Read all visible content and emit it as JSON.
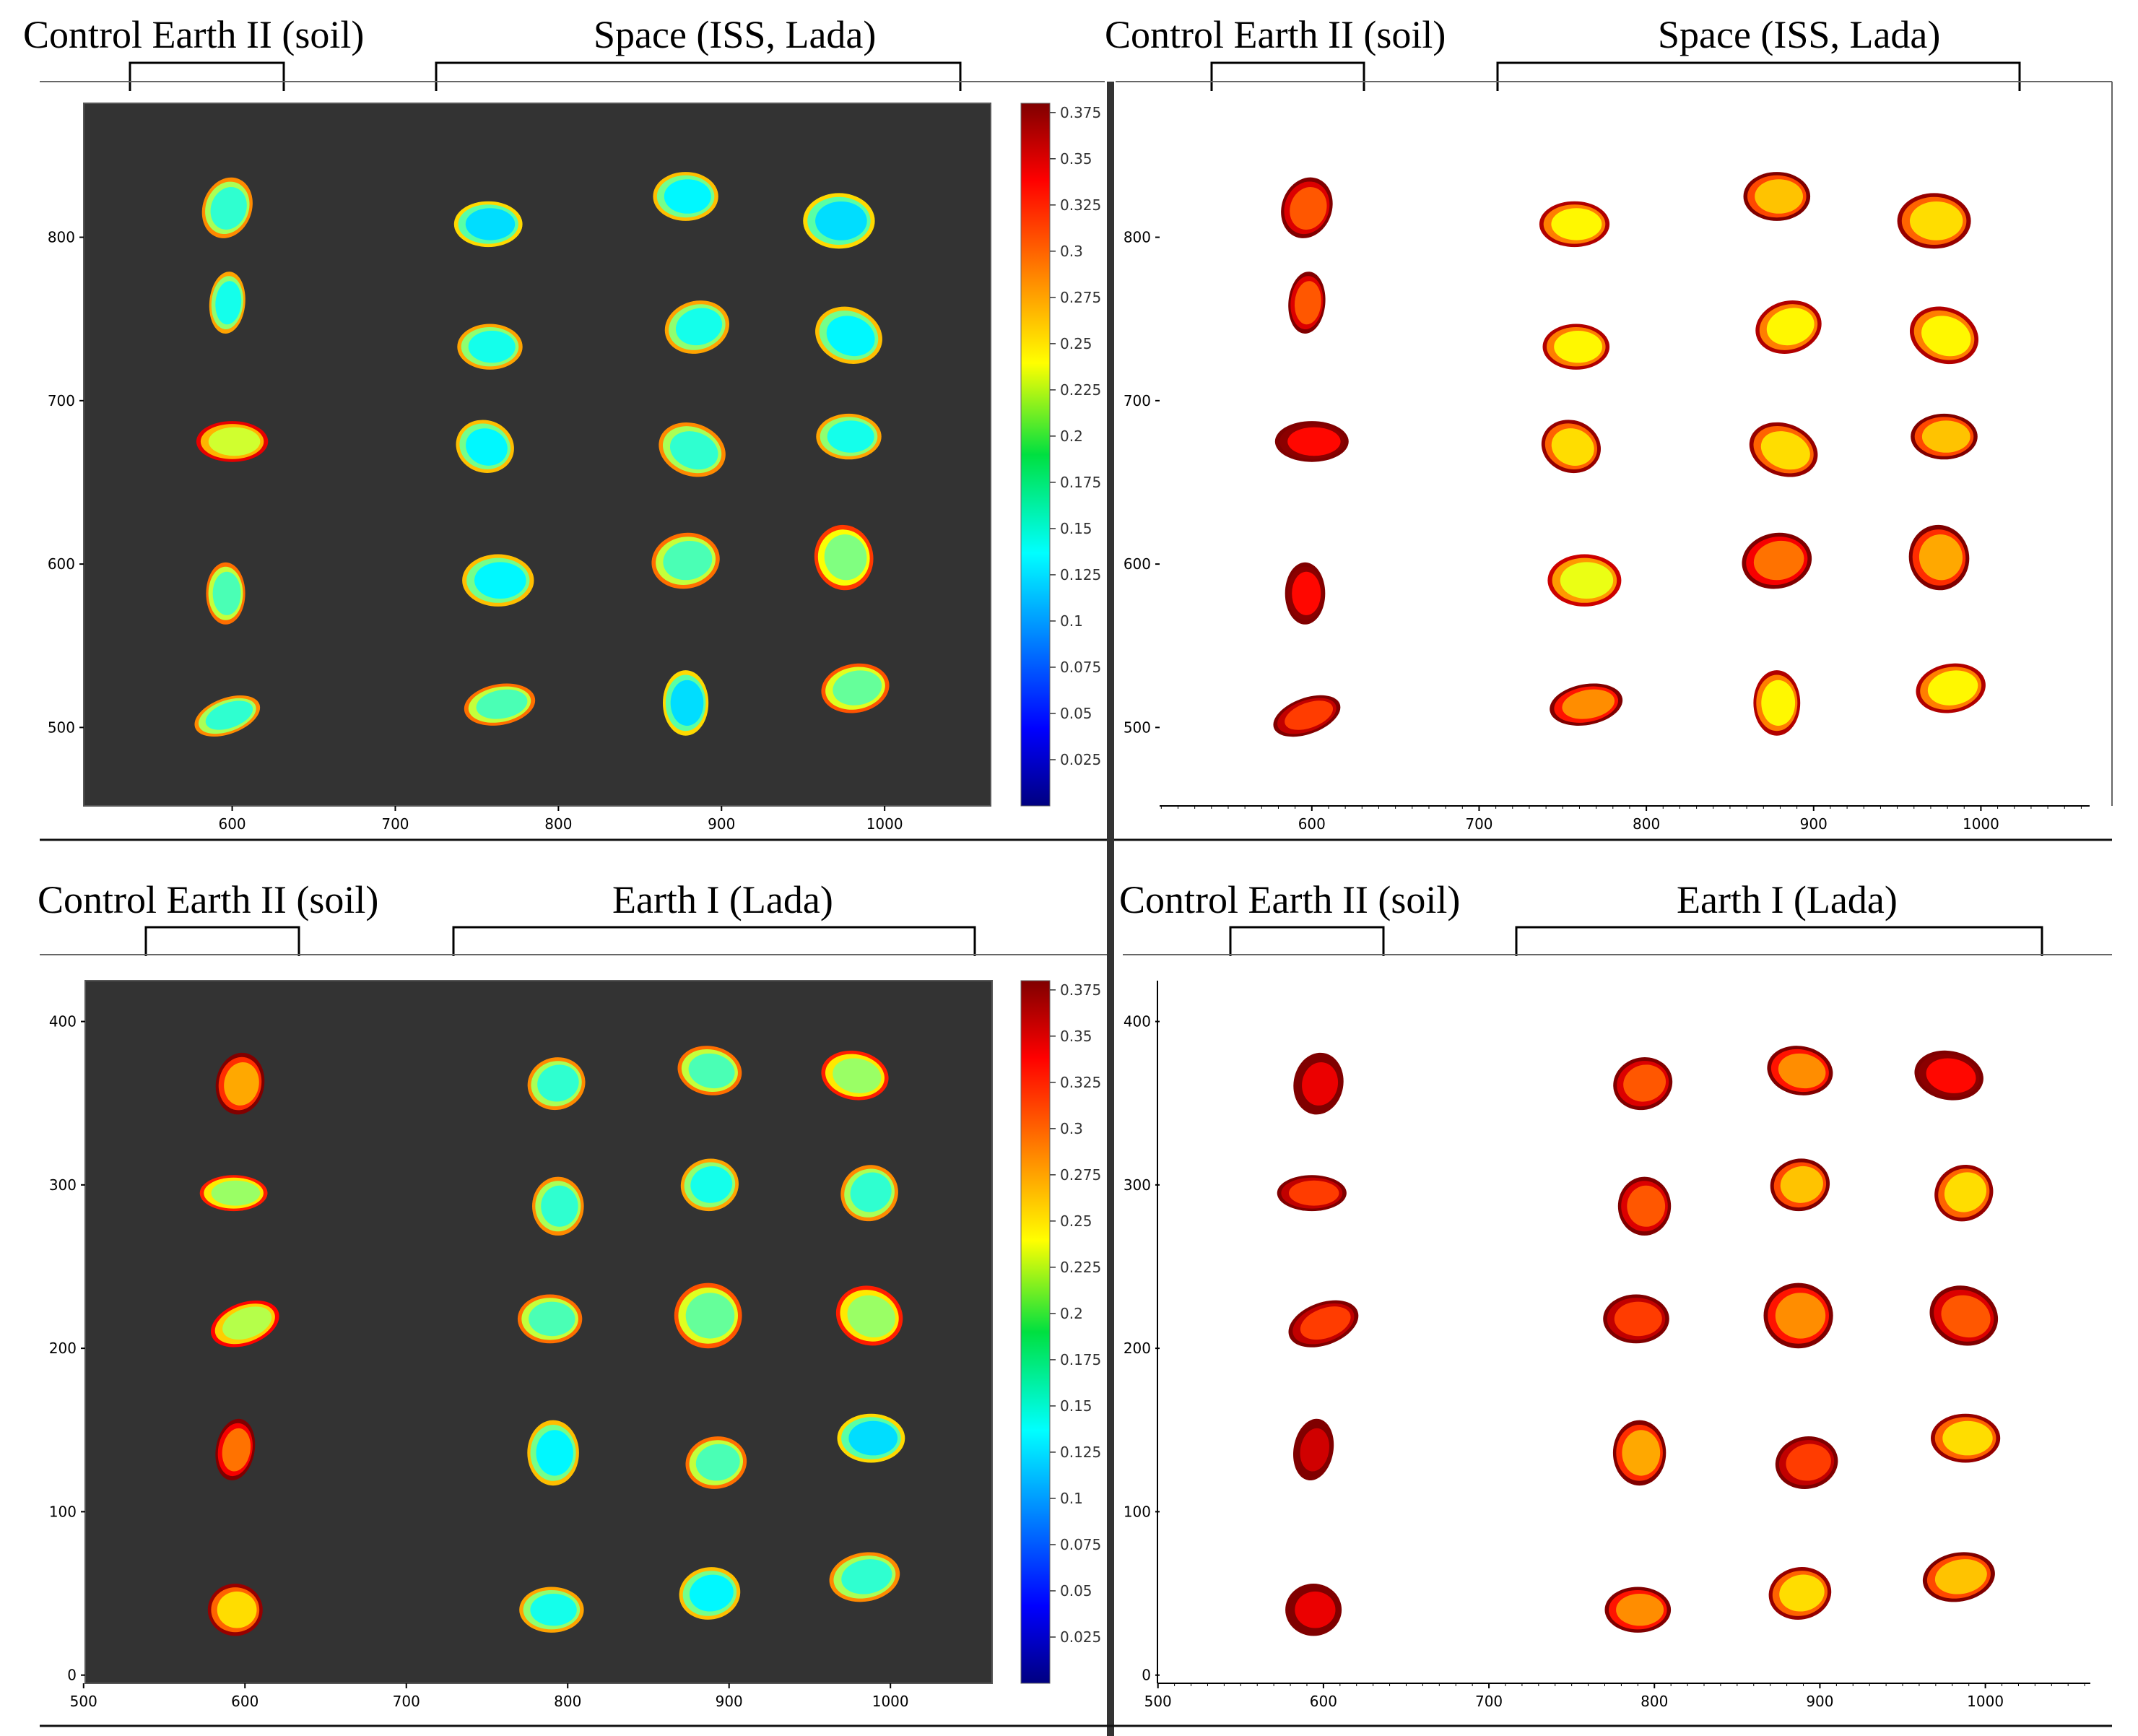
{
  "colors": {
    "dark_bg": "#333333",
    "light_bg": "#ffffff",
    "divider": "#333333"
  },
  "chart_data": [
    {
      "type": "heatmap",
      "panel": "top-left",
      "background": "dark",
      "titles": [
        "Control Earth II (soil)",
        "Space (ISS, Lada)"
      ],
      "xticks": [
        600,
        700,
        800,
        900,
        1000
      ],
      "yticks": [
        500,
        600,
        700,
        800
      ],
      "xlim": [
        509,
        1065
      ],
      "ylim": [
        452,
        882
      ],
      "colorbar": {
        "min": 0.0,
        "max": 0.38,
        "ticks": [
          0.375,
          0.35,
          0.325,
          0.3,
          0.275,
          0.25,
          0.225,
          0.2,
          0.175,
          0.15,
          0.125,
          0.1,
          0.075,
          0.05,
          0.025
        ]
      },
      "seeds": [
        {
          "x": 597,
          "y": 818,
          "w": 30,
          "h": 38,
          "rot": 20,
          "v": 0.16
        },
        {
          "x": 597,
          "y": 760,
          "w": 22,
          "h": 38,
          "rot": 5,
          "v": 0.15
        },
        {
          "x": 600,
          "y": 675,
          "w": 44,
          "h": 25,
          "rot": 0,
          "v": 0.22
        },
        {
          "x": 596,
          "y": 582,
          "w": 24,
          "h": 38,
          "rot": 0,
          "v": 0.17
        },
        {
          "x": 597,
          "y": 507,
          "w": 42,
          "h": 22,
          "rot": -20,
          "v": 0.16
        },
        {
          "x": 757,
          "y": 808,
          "w": 42,
          "h": 28,
          "rot": 0,
          "v": 0.13
        },
        {
          "x": 758,
          "y": 733,
          "w": 40,
          "h": 28,
          "rot": 0,
          "v": 0.15
        },
        {
          "x": 755,
          "y": 672,
          "w": 36,
          "h": 32,
          "rot": 20,
          "v": 0.14
        },
        {
          "x": 763,
          "y": 590,
          "w": 44,
          "h": 32,
          "rot": 0,
          "v": 0.14
        },
        {
          "x": 764,
          "y": 514,
          "w": 44,
          "h": 25,
          "rot": -10,
          "v": 0.17
        },
        {
          "x": 878,
          "y": 825,
          "w": 40,
          "h": 30,
          "rot": 0,
          "v": 0.14
        },
        {
          "x": 885,
          "y": 745,
          "w": 40,
          "h": 32,
          "rot": -15,
          "v": 0.15
        },
        {
          "x": 882,
          "y": 670,
          "w": 42,
          "h": 32,
          "rot": 20,
          "v": 0.16
        },
        {
          "x": 878,
          "y": 602,
          "w": 42,
          "h": 34,
          "rot": -10,
          "v": 0.17
        },
        {
          "x": 878,
          "y": 515,
          "w": 28,
          "h": 40,
          "rot": 0,
          "v": 0.13
        },
        {
          "x": 972,
          "y": 810,
          "w": 44,
          "h": 34,
          "rot": 0,
          "v": 0.13
        },
        {
          "x": 978,
          "y": 740,
          "w": 42,
          "h": 34,
          "rot": 20,
          "v": 0.14
        },
        {
          "x": 978,
          "y": 678,
          "w": 40,
          "h": 28,
          "rot": 0,
          "v": 0.15
        },
        {
          "x": 975,
          "y": 604,
          "w": 36,
          "h": 40,
          "rot": -10,
          "v": 0.19
        },
        {
          "x": 982,
          "y": 524,
          "w": 42,
          "h": 30,
          "rot": -10,
          "v": 0.18
        }
      ]
    },
    {
      "type": "heatmap",
      "panel": "top-right",
      "background": "light",
      "titles": [
        "Control Earth II (soil)",
        "Space (ISS, Lada)"
      ],
      "xticks": [
        600,
        700,
        800,
        900,
        1000
      ],
      "yticks": [
        500,
        600,
        700,
        800
      ],
      "xlim": [
        509,
        1065
      ],
      "ylim": [
        452,
        882
      ],
      "seeds": [
        {
          "x": 597,
          "y": 818,
          "w": 30,
          "h": 38,
          "rot": 20,
          "v": 0.3
        },
        {
          "x": 597,
          "y": 760,
          "w": 22,
          "h": 38,
          "rot": 5,
          "v": 0.3
        },
        {
          "x": 600,
          "y": 675,
          "w": 44,
          "h": 25,
          "rot": 0,
          "v": 0.33
        },
        {
          "x": 596,
          "y": 582,
          "w": 24,
          "h": 38,
          "rot": 0,
          "v": 0.33
        },
        {
          "x": 597,
          "y": 507,
          "w": 42,
          "h": 22,
          "rot": -20,
          "v": 0.31
        },
        {
          "x": 757,
          "y": 808,
          "w": 42,
          "h": 28,
          "rot": 0,
          "v": 0.24
        },
        {
          "x": 758,
          "y": 733,
          "w": 40,
          "h": 28,
          "rot": 0,
          "v": 0.24
        },
        {
          "x": 755,
          "y": 672,
          "w": 36,
          "h": 32,
          "rot": 20,
          "v": 0.25
        },
        {
          "x": 763,
          "y": 590,
          "w": 44,
          "h": 32,
          "rot": 0,
          "v": 0.23
        },
        {
          "x": 764,
          "y": 514,
          "w": 44,
          "h": 25,
          "rot": -10,
          "v": 0.28
        },
        {
          "x": 878,
          "y": 825,
          "w": 40,
          "h": 30,
          "rot": 0,
          "v": 0.26
        },
        {
          "x": 885,
          "y": 745,
          "w": 40,
          "h": 32,
          "rot": -15,
          "v": 0.24
        },
        {
          "x": 882,
          "y": 670,
          "w": 42,
          "h": 32,
          "rot": 20,
          "v": 0.25
        },
        {
          "x": 878,
          "y": 602,
          "w": 42,
          "h": 34,
          "rot": -10,
          "v": 0.29
        },
        {
          "x": 878,
          "y": 515,
          "w": 28,
          "h": 40,
          "rot": 0,
          "v": 0.24
        },
        {
          "x": 972,
          "y": 810,
          "w": 44,
          "h": 34,
          "rot": 0,
          "v": 0.25
        },
        {
          "x": 978,
          "y": 740,
          "w": 42,
          "h": 34,
          "rot": 20,
          "v": 0.24
        },
        {
          "x": 978,
          "y": 678,
          "w": 40,
          "h": 28,
          "rot": 0,
          "v": 0.26
        },
        {
          "x": 975,
          "y": 604,
          "w": 36,
          "h": 40,
          "rot": -10,
          "v": 0.27
        },
        {
          "x": 982,
          "y": 524,
          "w": 42,
          "h": 30,
          "rot": -10,
          "v": 0.24
        }
      ]
    },
    {
      "type": "heatmap",
      "panel": "bottom-left",
      "background": "dark",
      "titles": [
        "Control Earth II (soil)",
        "Earth I  (Lada)"
      ],
      "xticks": [
        500,
        600,
        700,
        800,
        900,
        1000
      ],
      "yticks": [
        0,
        100,
        200,
        300,
        400
      ],
      "xlim": [
        501,
        1063
      ],
      "ylim": [
        -5,
        425
      ],
      "colorbar": {
        "min": 0.0,
        "max": 0.38,
        "ticks": [
          0.375,
          0.35,
          0.325,
          0.3,
          0.275,
          0.25,
          0.225,
          0.2,
          0.175,
          0.15,
          0.125,
          0.1,
          0.075,
          0.05,
          0.025
        ]
      },
      "seeds": [
        {
          "x": 597,
          "y": 362,
          "w": 30,
          "h": 38,
          "rot": 10,
          "v": 0.27
        },
        {
          "x": 593,
          "y": 295,
          "w": 42,
          "h": 22,
          "rot": 0,
          "v": 0.2
        },
        {
          "x": 600,
          "y": 215,
          "w": 44,
          "h": 26,
          "rot": -20,
          "v": 0.21
        },
        {
          "x": 594,
          "y": 138,
          "w": 24,
          "h": 38,
          "rot": 10,
          "v": 0.29
        },
        {
          "x": 594,
          "y": 40,
          "w": 34,
          "h": 32,
          "rot": 0,
          "v": 0.25
        },
        {
          "x": 793,
          "y": 362,
          "w": 36,
          "h": 32,
          "rot": -15,
          "v": 0.16
        },
        {
          "x": 794,
          "y": 287,
          "w": 32,
          "h": 36,
          "rot": 0,
          "v": 0.16
        },
        {
          "x": 789,
          "y": 218,
          "w": 40,
          "h": 30,
          "rot": 0,
          "v": 0.17
        },
        {
          "x": 791,
          "y": 136,
          "w": 32,
          "h": 40,
          "rot": 0,
          "v": 0.14
        },
        {
          "x": 790,
          "y": 40,
          "w": 40,
          "h": 28,
          "rot": 0,
          "v": 0.15
        },
        {
          "x": 888,
          "y": 370,
          "w": 40,
          "h": 30,
          "rot": 10,
          "v": 0.17
        },
        {
          "x": 888,
          "y": 300,
          "w": 36,
          "h": 32,
          "rot": -10,
          "v": 0.15
        },
        {
          "x": 887,
          "y": 220,
          "w": 42,
          "h": 40,
          "rot": 0,
          "v": 0.18
        },
        {
          "x": 892,
          "y": 130,
          "w": 38,
          "h": 32,
          "rot": -10,
          "v": 0.17
        },
        {
          "x": 888,
          "y": 50,
          "w": 38,
          "h": 32,
          "rot": -10,
          "v": 0.14
        },
        {
          "x": 978,
          "y": 367,
          "w": 42,
          "h": 30,
          "rot": 10,
          "v": 0.2
        },
        {
          "x": 987,
          "y": 295,
          "w": 36,
          "h": 34,
          "rot": -30,
          "v": 0.16
        },
        {
          "x": 987,
          "y": 220,
          "w": 42,
          "h": 36,
          "rot": 20,
          "v": 0.2
        },
        {
          "x": 988,
          "y": 145,
          "w": 42,
          "h": 30,
          "rot": 0,
          "v": 0.13
        },
        {
          "x": 984,
          "y": 60,
          "w": 44,
          "h": 30,
          "rot": -10,
          "v": 0.16
        }
      ]
    },
    {
      "type": "heatmap",
      "panel": "bottom-right",
      "background": "light",
      "titles": [
        "Control Earth II (soil)",
        "Earth I  (Lada)"
      ],
      "xticks": [
        500,
        600,
        700,
        800,
        900,
        1000
      ],
      "yticks": [
        0,
        100,
        200,
        300,
        400
      ],
      "xlim": [
        501,
        1063
      ],
      "ylim": [
        -5,
        425
      ],
      "seeds": [
        {
          "x": 597,
          "y": 362,
          "w": 30,
          "h": 38,
          "rot": 10,
          "v": 0.34
        },
        {
          "x": 593,
          "y": 295,
          "w": 42,
          "h": 22,
          "rot": 0,
          "v": 0.31
        },
        {
          "x": 600,
          "y": 215,
          "w": 44,
          "h": 26,
          "rot": -20,
          "v": 0.31
        },
        {
          "x": 594,
          "y": 138,
          "w": 24,
          "h": 38,
          "rot": 10,
          "v": 0.35
        },
        {
          "x": 594,
          "y": 40,
          "w": 34,
          "h": 32,
          "rot": 0,
          "v": 0.34
        },
        {
          "x": 793,
          "y": 362,
          "w": 36,
          "h": 32,
          "rot": -15,
          "v": 0.3
        },
        {
          "x": 794,
          "y": 287,
          "w": 32,
          "h": 36,
          "rot": 0,
          "v": 0.3
        },
        {
          "x": 789,
          "y": 218,
          "w": 40,
          "h": 30,
          "rot": 0,
          "v": 0.31
        },
        {
          "x": 791,
          "y": 136,
          "w": 32,
          "h": 40,
          "rot": 0,
          "v": 0.27
        },
        {
          "x": 790,
          "y": 40,
          "w": 40,
          "h": 28,
          "rot": 0,
          "v": 0.28
        },
        {
          "x": 888,
          "y": 370,
          "w": 40,
          "h": 30,
          "rot": 10,
          "v": 0.28
        },
        {
          "x": 888,
          "y": 300,
          "w": 36,
          "h": 32,
          "rot": -10,
          "v": 0.26
        },
        {
          "x": 887,
          "y": 220,
          "w": 42,
          "h": 40,
          "rot": 0,
          "v": 0.28
        },
        {
          "x": 892,
          "y": 130,
          "w": 38,
          "h": 32,
          "rot": -10,
          "v": 0.31
        },
        {
          "x": 888,
          "y": 50,
          "w": 38,
          "h": 32,
          "rot": -10,
          "v": 0.25
        },
        {
          "x": 978,
          "y": 367,
          "w": 42,
          "h": 30,
          "rot": 10,
          "v": 0.33
        },
        {
          "x": 987,
          "y": 295,
          "w": 36,
          "h": 34,
          "rot": -30,
          "v": 0.25
        },
        {
          "x": 987,
          "y": 220,
          "w": 42,
          "h": 36,
          "rot": 20,
          "v": 0.3
        },
        {
          "x": 988,
          "y": 145,
          "w": 42,
          "h": 30,
          "rot": 0,
          "v": 0.25
        },
        {
          "x": 984,
          "y": 60,
          "w": 44,
          "h": 30,
          "rot": -10,
          "v": 0.26
        }
      ]
    }
  ]
}
